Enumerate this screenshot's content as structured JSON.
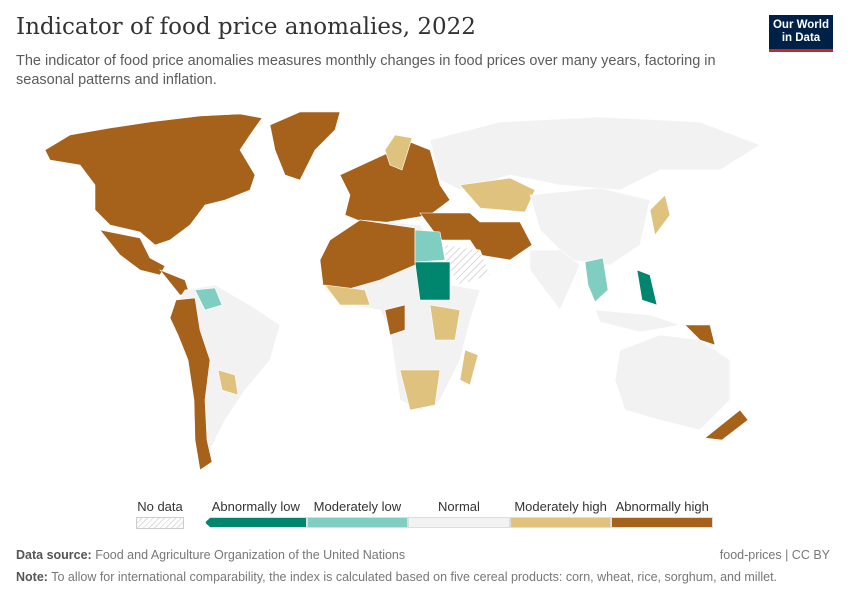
{
  "header": {
    "title": "Indicator of food price anomalies, 2022",
    "subtitle": "The indicator of food price anomalies measures monthly changes in food prices over many years, factoring in seasonal patterns and inflation.",
    "logo": "Our World in Data"
  },
  "chart_data": {
    "type": "choropleth",
    "title": "Indicator of food price anomalies, 2022",
    "legend": {
      "no_data": "No data",
      "categories": [
        "Abnormally low",
        "Moderately low",
        "Normal",
        "Moderately high",
        "Abnormally high"
      ]
    },
    "colors": {
      "Abnormally low": "#00856e",
      "Moderately low": "#80cdc1",
      "Normal": "#f2f2f2",
      "Moderately high": "#dfc27d",
      "Abnormally high": "#a6611a",
      "No data": "hatch"
    },
    "regions": {
      "north-america": "Abnormally high",
      "greenland": "Abnormally high",
      "mexico": "Abnormally high",
      "central-america": "Abnormally high",
      "south-america": "Normal",
      "andes": "Abnormally high",
      "venezuela": "Moderately low",
      "bolivia": "Moderately high",
      "europe": "Abnormally high",
      "scandinavia": "Moderately high",
      "russia": "Normal",
      "kazakhstan": "Moderately high",
      "china": "Normal",
      "middle-east": "Abnormally high",
      "saudi-arabia": "No data",
      "india": "Normal",
      "mainland-se-asia": "Moderately low",
      "philippines": "Abnormally low",
      "indonesia": "Normal",
      "papua-new-guinea": "Abnormally high",
      "australia": "Normal",
      "new-zealand": "Abnormally high",
      "japan": "Moderately high",
      "africa": "Normal",
      "north-africa": "Abnormally high",
      "egypt": "Moderately low",
      "sudan": "Abnormally low",
      "west-africa": "Moderately high",
      "east-africa": "Moderately high",
      "central-africa": "Abnormally high",
      "southern-africa": "Moderately high",
      "madagascar": "Moderately high"
    }
  },
  "footer": {
    "source_label": "Data source:",
    "source": "Food and Agriculture Organization of the United Nations",
    "license": "food-prices | CC BY",
    "note_label": "Note:",
    "note": "To allow for international comparability, the index is calculated based on five cereal products: corn, wheat, rice, sorghum, and millet."
  }
}
